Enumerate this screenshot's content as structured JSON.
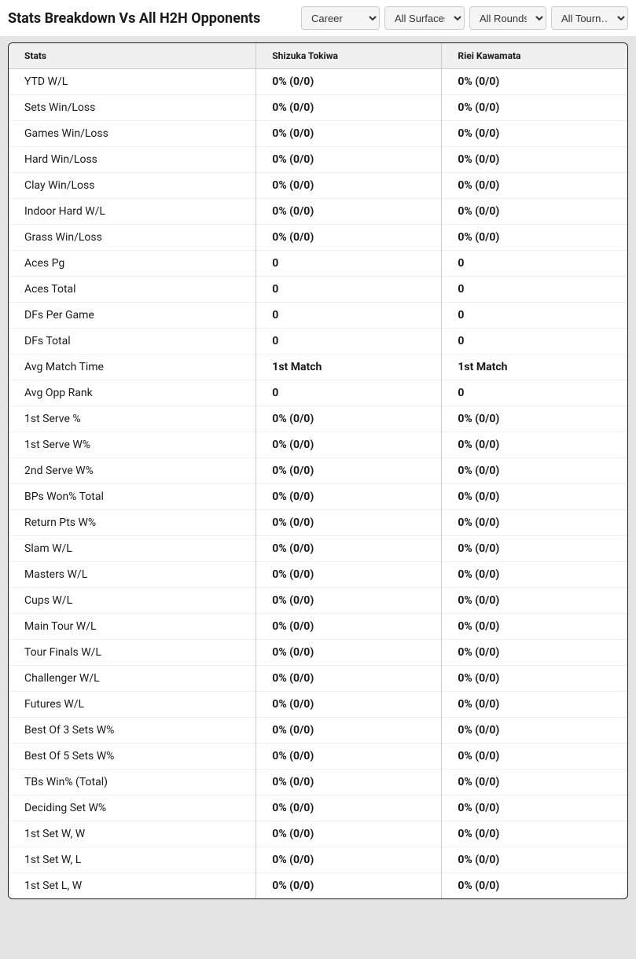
{
  "header": {
    "title": "Stats Breakdown Vs All H2H Opponents"
  },
  "filters": {
    "career": "Career",
    "surfaces": "All Surfaces",
    "rounds": "All Rounds",
    "tournaments": "All Tourn…"
  },
  "table": {
    "columns": [
      "Stats",
      "Shizuka Tokiwa",
      "Riei Kawamata"
    ],
    "rows": [
      {
        "stat": "YTD W/L",
        "p1": "0% (0/0)",
        "p2": "0% (0/0)"
      },
      {
        "stat": "Sets Win/Loss",
        "p1": "0% (0/0)",
        "p2": "0% (0/0)"
      },
      {
        "stat": "Games Win/Loss",
        "p1": "0% (0/0)",
        "p2": "0% (0/0)"
      },
      {
        "stat": "Hard Win/Loss",
        "p1": "0% (0/0)",
        "p2": "0% (0/0)"
      },
      {
        "stat": "Clay Win/Loss",
        "p1": "0% (0/0)",
        "p2": "0% (0/0)"
      },
      {
        "stat": "Indoor Hard W/L",
        "p1": "0% (0/0)",
        "p2": "0% (0/0)"
      },
      {
        "stat": "Grass Win/Loss",
        "p1": "0% (0/0)",
        "p2": "0% (0/0)"
      },
      {
        "stat": "Aces Pg",
        "p1": "0",
        "p2": "0"
      },
      {
        "stat": "Aces Total",
        "p1": "0",
        "p2": "0"
      },
      {
        "stat": "DFs Per Game",
        "p1": "0",
        "p2": "0"
      },
      {
        "stat": "DFs Total",
        "p1": "0",
        "p2": "0"
      },
      {
        "stat": "Avg Match Time",
        "p1": "1st Match",
        "p2": "1st Match"
      },
      {
        "stat": "Avg Opp Rank",
        "p1": "0",
        "p2": "0"
      },
      {
        "stat": "1st Serve %",
        "p1": "0% (0/0)",
        "p2": "0% (0/0)"
      },
      {
        "stat": "1st Serve W%",
        "p1": "0% (0/0)",
        "p2": "0% (0/0)"
      },
      {
        "stat": "2nd Serve W%",
        "p1": "0% (0/0)",
        "p2": "0% (0/0)"
      },
      {
        "stat": "BPs Won% Total",
        "p1": "0% (0/0)",
        "p2": "0% (0/0)"
      },
      {
        "stat": "Return Pts W%",
        "p1": "0% (0/0)",
        "p2": "0% (0/0)"
      },
      {
        "stat": "Slam W/L",
        "p1": "0% (0/0)",
        "p2": "0% (0/0)"
      },
      {
        "stat": "Masters W/L",
        "p1": "0% (0/0)",
        "p2": "0% (0/0)"
      },
      {
        "stat": "Cups W/L",
        "p1": "0% (0/0)",
        "p2": "0% (0/0)"
      },
      {
        "stat": "Main Tour W/L",
        "p1": "0% (0/0)",
        "p2": "0% (0/0)"
      },
      {
        "stat": "Tour Finals W/L",
        "p1": "0% (0/0)",
        "p2": "0% (0/0)"
      },
      {
        "stat": "Challenger W/L",
        "p1": "0% (0/0)",
        "p2": "0% (0/0)"
      },
      {
        "stat": "Futures W/L",
        "p1": "0% (0/0)",
        "p2": "0% (0/0)"
      },
      {
        "stat": "Best Of 3 Sets W%",
        "p1": "0% (0/0)",
        "p2": "0% (0/0)"
      },
      {
        "stat": "Best Of 5 Sets W%",
        "p1": "0% (0/0)",
        "p2": "0% (0/0)"
      },
      {
        "stat": "TBs Win% (Total)",
        "p1": "0% (0/0)",
        "p2": "0% (0/0)"
      },
      {
        "stat": "Deciding Set W%",
        "p1": "0% (0/0)",
        "p2": "0% (0/0)"
      },
      {
        "stat": "1st Set W, W",
        "p1": "0% (0/0)",
        "p2": "0% (0/0)"
      },
      {
        "stat": "1st Set W, L",
        "p1": "0% (0/0)",
        "p2": "0% (0/0)"
      },
      {
        "stat": "1st Set L, W",
        "p1": "0% (0/0)",
        "p2": "0% (0/0)"
      }
    ]
  },
  "styling": {
    "background_color": "#e5e5e5",
    "table_border_color": "#1a1a1a",
    "header_bg": "#f0f0f0",
    "cell_border_color": "#cccccc",
    "row_border_color": "#eeeeee",
    "text_color": "#1a1a1a",
    "title_fontsize": 18,
    "header_fontsize": 12,
    "cell_fontsize": 14
  }
}
